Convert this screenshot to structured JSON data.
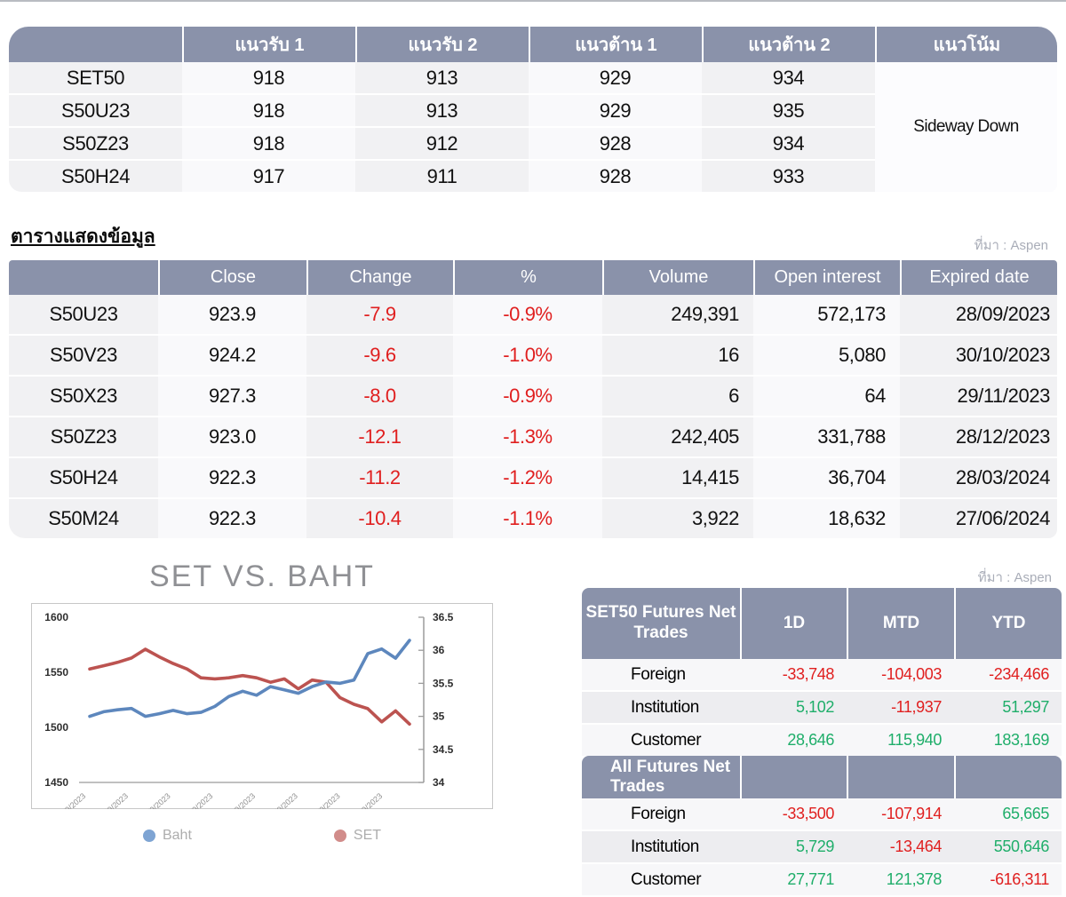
{
  "source_label": "ที่มา : Aspen",
  "levels_table": {
    "headers": [
      "",
      "แนวรับ 1",
      "แนวรับ 2",
      "แนวต้าน 1",
      "แนวต้าน 2",
      "แนวโน้ม"
    ],
    "rows": [
      {
        "label": "SET50",
        "values": [
          "918",
          "913",
          "929",
          "934"
        ]
      },
      {
        "label": "S50U23",
        "values": [
          "918",
          "913",
          "929",
          "935"
        ]
      },
      {
        "label": "S50Z23",
        "values": [
          "918",
          "912",
          "928",
          "934"
        ]
      },
      {
        "label": "S50H24",
        "values": [
          "917",
          "911",
          "928",
          "933"
        ]
      }
    ],
    "trend": "Sideway Down"
  },
  "data_table": {
    "title": "ตารางแสดงข้อมูล",
    "headers": [
      "",
      "Close",
      "Change",
      "%",
      "Volume",
      "Open interest",
      "Expired date"
    ],
    "rows": [
      [
        "S50U23",
        "923.9",
        "-7.9",
        "-0.9%",
        "249,391",
        "572,173",
        "28/09/2023"
      ],
      [
        "S50V23",
        "924.2",
        "-9.6",
        "-1.0%",
        "16",
        "5,080",
        "30/10/2023"
      ],
      [
        "S50X23",
        "927.3",
        "-8.0",
        "-0.9%",
        "6",
        "64",
        "29/11/2023"
      ],
      [
        "S50Z23",
        "923.0",
        "-12.1",
        "-1.3%",
        "242,405",
        "331,788",
        "28/12/2023"
      ],
      [
        "S50H24",
        "922.3",
        "-11.2",
        "-1.2%",
        "14,415",
        "36,704",
        "28/03/2024"
      ],
      [
        "S50M24",
        "922.3",
        "-10.4",
        "-1.1%",
        "3,922",
        "18,632",
        "27/06/2024"
      ]
    ]
  },
  "chart_data": {
    "type": "line",
    "title": "SET VS. BAHT",
    "x_labels": [
      "1/9/2023",
      "5/9/2023",
      "7/9/2023",
      "11/9/2023",
      "13/9/2023",
      "15/9/2023",
      "19/9/2023",
      "21/9/2023"
    ],
    "left_axis": {
      "ticks": [
        1600,
        1550,
        1500,
        1450
      ],
      "range": [
        1450,
        1600
      ]
    },
    "right_axis": {
      "ticks": [
        36.5,
        36,
        35.5,
        35,
        34.5,
        34
      ],
      "range": [
        34,
        36.5
      ]
    },
    "legend_position": "bottom",
    "series": [
      {
        "name": "SET",
        "axis": "left",
        "color": "#bc5350",
        "legend_color": "#d18c8a",
        "values": [
          1553,
          1556,
          1559,
          1563,
          1571,
          1564,
          1558,
          1553,
          1545,
          1544,
          1545,
          1547,
          1545,
          1541,
          1544,
          1535,
          1543,
          1541,
          1527,
          1521,
          1517,
          1505,
          1515,
          1503
        ]
      },
      {
        "name": "Baht",
        "axis": "right",
        "color": "#5d87bd",
        "legend_color": "#7ea4d3",
        "values": [
          35.0,
          35.07,
          35.1,
          35.12,
          35.0,
          35.04,
          35.09,
          35.04,
          35.06,
          35.15,
          35.3,
          35.38,
          35.32,
          35.45,
          35.4,
          35.35,
          35.45,
          35.52,
          35.5,
          35.55,
          35.95,
          36.02,
          35.88,
          36.15
        ]
      }
    ]
  },
  "net_trades": {
    "columns": [
      "1D",
      "MTD",
      "YTD"
    ],
    "set50": {
      "title": "SET50 Futures Net Trades",
      "rows": [
        {
          "label": "Foreign",
          "values": [
            "-33,748",
            "-104,003",
            "-234,466"
          ]
        },
        {
          "label": "Institution",
          "values": [
            "5,102",
            "-11,937",
            "51,297"
          ]
        },
        {
          "label": "Customer",
          "values": [
            "28,646",
            "115,940",
            "183,169"
          ]
        }
      ]
    },
    "all": {
      "title": "All Futures Net Trades",
      "rows": [
        {
          "label": "Foreign",
          "values": [
            "-33,500",
            "-107,914",
            "65,665"
          ]
        },
        {
          "label": "Institution",
          "values": [
            "5,729",
            "-13,464",
            "550,646"
          ]
        },
        {
          "label": "Customer",
          "values": [
            "27,771",
            "121,378",
            "-616,311"
          ]
        }
      ]
    }
  },
  "colors": {
    "header_bg": "#8a92aa",
    "negative": "#e01f1f",
    "positive": "#1fae6a",
    "set_line": "#bc5350",
    "baht_line": "#5d87bd"
  }
}
